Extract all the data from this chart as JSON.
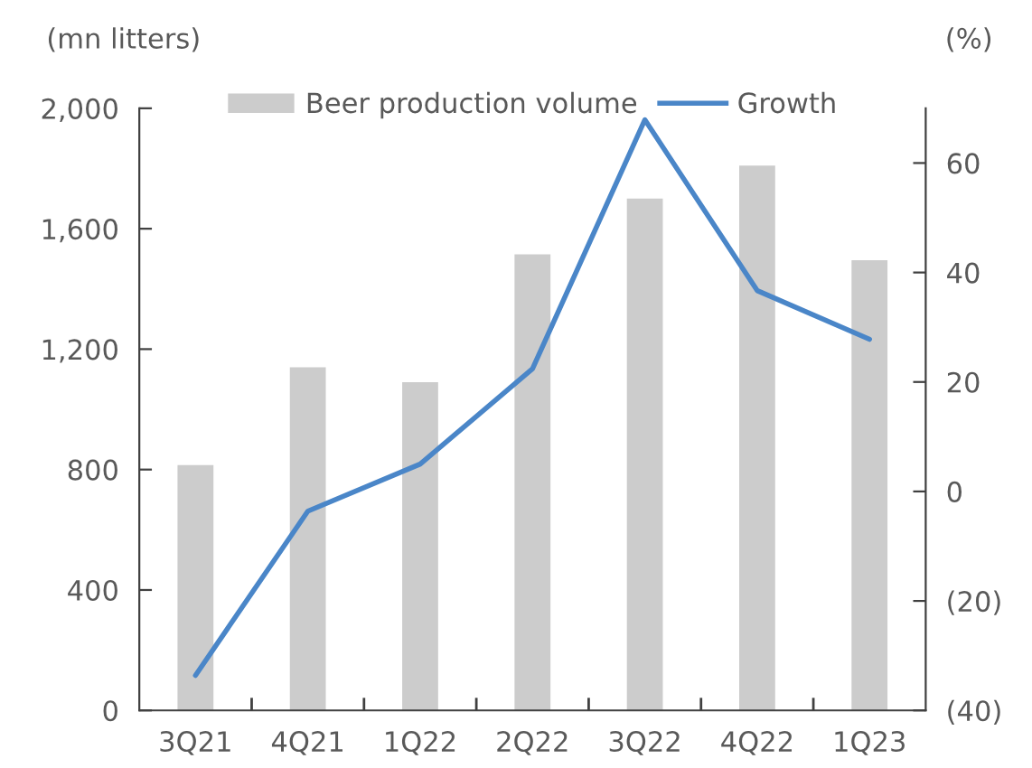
{
  "chart_data": {
    "type": "bar",
    "categories": [
      "3Q21",
      "4Q21",
      "1Q22",
      "2Q22",
      "3Q22",
      "4Q22",
      "1Q23"
    ],
    "ylabel": "(mn litters)",
    "y2label": "(%)",
    "series": [
      {
        "name": "Beer production volume",
        "color": "#cccccc",
        "values": [
          815,
          1140,
          1090,
          1515,
          1700,
          1810,
          1495
        ]
      },
      {
        "name": "Growth",
        "type": "line",
        "axis": "y2",
        "color": "#4a86c8",
        "values": [
          -33.6,
          -3.6,
          5.0,
          22.4,
          67.9,
          36.7,
          27.8
        ]
      }
    ],
    "ylim": [
      0,
      2000
    ],
    "yticks": [
      0,
      400,
      800,
      {
        "value": 1200,
        "label": "1,200"
      },
      {
        "value": 1600,
        "label": "1,600"
      },
      {
        "value": 2000,
        "label": "2,000"
      }
    ],
    "y2lim": [
      -40,
      70
    ],
    "y2ticks": [
      {
        "value": -40,
        "label": "(40)"
      },
      {
        "value": -20,
        "label": "(20)"
      },
      0,
      20,
      40,
      60
    ],
    "legend": "top",
    "grid": false,
    "marker": "none",
    "line_style": "solid"
  }
}
